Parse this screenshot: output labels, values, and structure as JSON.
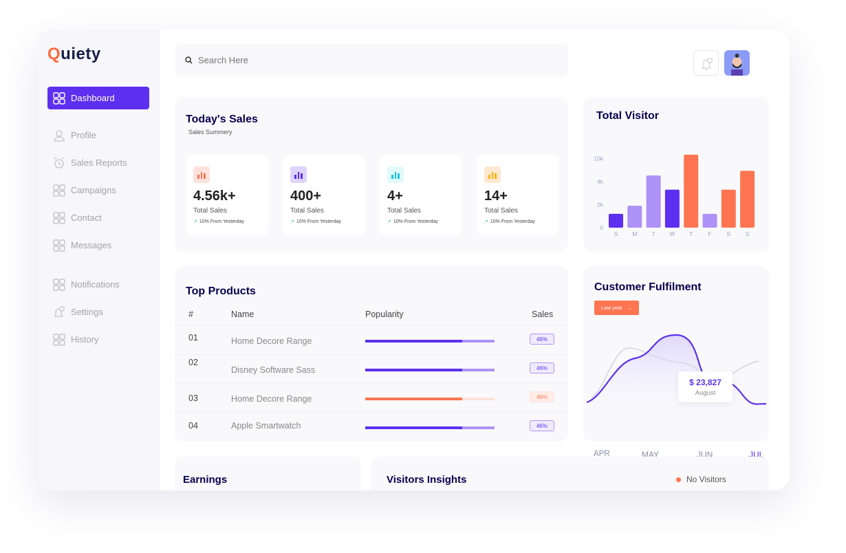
{
  "brand": {
    "name_first": "Q",
    "name_rest": "uiety"
  },
  "sidebar": {
    "items": [
      {
        "label": "Dashboard",
        "icon": "grid-icon",
        "active": true
      },
      {
        "label": "Profile",
        "icon": "user-icon"
      },
      {
        "label": "Sales Reports",
        "icon": "alarm-clock-icon"
      },
      {
        "label": "Campaigns",
        "icon": "grid-icon"
      },
      {
        "label": "Contact",
        "icon": "grid-icon"
      },
      {
        "label": "Messages",
        "icon": "grid-icon"
      },
      {
        "label": "Notifications",
        "icon": "grid-icon"
      },
      {
        "label": "Settings",
        "icon": "bell-icon"
      },
      {
        "label": "History",
        "icon": "grid-icon"
      }
    ]
  },
  "search": {
    "placeholder": "Search Here"
  },
  "header": {
    "notification_count": "1"
  },
  "today_sales": {
    "title": "Today's Sales",
    "subtitle": "Sales Summery",
    "stats": [
      {
        "value": "4.56k+",
        "label": "Total Sales",
        "change": "10% From Yesterday",
        "color": "#ff7551",
        "bg": "#ffe2dc"
      },
      {
        "value": "400+",
        "label": "Total Sales",
        "change": "10% From Yesterday",
        "color": "#5d2ff0",
        "bg": "#ddd3fb"
      },
      {
        "value": "4+",
        "label": "Total Sales",
        "change": "10% From Yesterday",
        "color": "#17c7e0",
        "bg": "#e2fafc"
      },
      {
        "value": "14+",
        "label": "Total Sales",
        "change": "10% From Yesterday",
        "color": "#ffb300",
        "bg": "#ffe8cf"
      }
    ]
  },
  "top_products": {
    "title": "Top Products",
    "columns": [
      "#",
      "Name",
      "Popularity",
      "Sales"
    ],
    "rows": [
      {
        "num": "01",
        "name": "Home Decore Range",
        "popularity": 0.75,
        "sales": "46%",
        "color": "#5d2ff0",
        "track": "#ae92f5",
        "pill_bg": "#efebfd"
      },
      {
        "num": "02",
        "name": "Disney Software Sass",
        "popularity": 0.75,
        "sales": "46%",
        "color": "#5d2ff0",
        "track": "#ae92f5",
        "pill_bg": "#efebfd"
      },
      {
        "num": "03",
        "name": "Home Decore Range",
        "popularity": 0.75,
        "sales": "46%",
        "color": "#ff7551",
        "track": "#fde1da",
        "pill_bg": "#ffece7"
      },
      {
        "num": "04",
        "name": "Apple Smartwatch",
        "popularity": 0.75,
        "sales": "46%",
        "color": "#5d2ff0",
        "track": "#ae92f5",
        "pill_bg": "#efebfd"
      }
    ]
  },
  "chart_data": [
    {
      "type": "bar",
      "title": "Total Visitor",
      "categories": [
        "S",
        "M",
        "T",
        "W",
        "T",
        "F",
        "S",
        "S"
      ],
      "values": [
        1200,
        1900,
        5600,
        3300,
        11000,
        1200,
        3300,
        6800
      ],
      "colors": [
        "#5d2ff0",
        "#ae92f5",
        "#ae92f5",
        "#5d2ff0",
        "#ff7551",
        "#ae92f5",
        "#ff7551",
        "#ff7551"
      ],
      "yticks": [
        "0",
        "2k",
        "4k",
        "10k"
      ],
      "ytick_values": [
        0,
        2000,
        4000,
        10000
      ],
      "grid": false
    },
    {
      "type": "line",
      "title": "Customer Fulfilment",
      "categories": [
        "APR",
        "MAY",
        "JUN",
        "JUL"
      ],
      "highlight": {
        "value": "$ 23,827",
        "label": "August"
      },
      "grid": false,
      "colors": {
        "primary": "#5d2ff0",
        "secondary": "#dcdae8"
      }
    }
  ],
  "fulfilment": {
    "filter": "Last year"
  },
  "earnings": {
    "title": "Earnings"
  },
  "visitors_insights": {
    "title": "Visitors Insights",
    "legend": "No Visitors",
    "legend_color": "#ff7551"
  }
}
